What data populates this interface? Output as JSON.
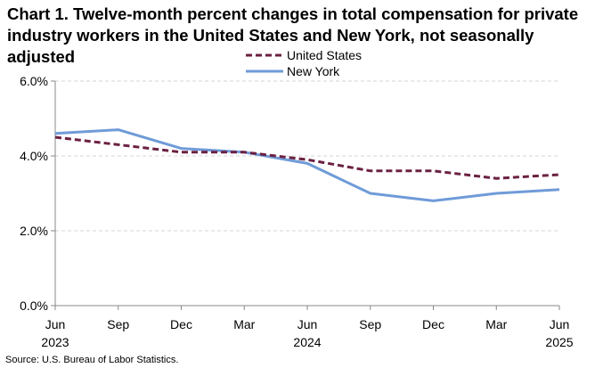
{
  "chart_data": {
    "type": "line",
    "title": "Chart 1. Twelve-month percent changes in total compensation for private industry workers in the United States and New York, not seasonally adjusted",
    "categories": [
      "Jun 2023",
      "Sep",
      "Dec",
      "Mar",
      "Jun 2024",
      "Sep",
      "Dec",
      "Mar",
      "Jun 2025"
    ],
    "x_tick_labels": [
      {
        "month": "Jun",
        "year": "2023"
      },
      {
        "month": "Sep",
        "year": ""
      },
      {
        "month": "Dec",
        "year": ""
      },
      {
        "month": "Mar",
        "year": ""
      },
      {
        "month": "Jun",
        "year": "2024"
      },
      {
        "month": "Sep",
        "year": ""
      },
      {
        "month": "Dec",
        "year": ""
      },
      {
        "month": "Mar",
        "year": ""
      },
      {
        "month": "Jun",
        "year": "2025"
      }
    ],
    "y_ticks": [
      "0.0%",
      "2.0%",
      "4.0%",
      "6.0%"
    ],
    "ylim": [
      0,
      6
    ],
    "series": [
      {
        "name": "United States",
        "color": "#6b2142",
        "style": "dashed",
        "values": [
          4.5,
          4.3,
          4.1,
          4.1,
          3.9,
          3.6,
          3.6,
          3.4,
          3.5
        ]
      },
      {
        "name": "New York",
        "color": "#6f9bd8",
        "style": "solid",
        "values": [
          4.6,
          4.7,
          4.2,
          4.1,
          3.8,
          3.0,
          2.8,
          3.0,
          3.1
        ]
      }
    ],
    "legend_position": "top-center",
    "grid": true,
    "source": "Source: U.S. Bureau of Labor Statistics."
  }
}
